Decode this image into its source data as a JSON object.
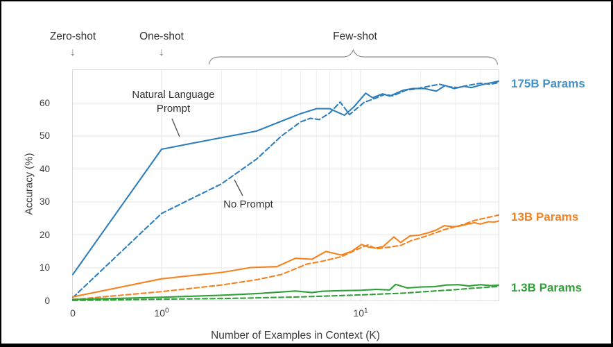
{
  "figure": {
    "header": {
      "zero_shot": "Zero-shot",
      "one_shot": "One-shot",
      "few_shot": "Few-shot",
      "arrow_glyph": "↓"
    },
    "annotations": {
      "nl_prompt_line1": "Natural Language",
      "nl_prompt_line2": "Prompt",
      "no_prompt": "No Prompt"
    },
    "series_labels": [
      {
        "text": "175B Params",
        "color": "#4292c8"
      },
      {
        "text": "13B Params",
        "color": "#f5821e"
      },
      {
        "text": "1.3B Params",
        "color": "#2fa037"
      }
    ],
    "colors": {
      "background": "#ffffff",
      "frame": "#000000",
      "grid_major": "#e5e5e5",
      "grid_minor": "#efefef",
      "plot_border": "#d8d8d8",
      "text": "#3b3b3b",
      "annotation_gray": "#8f8f8f"
    }
  },
  "chart_data": {
    "type": "line",
    "title": "",
    "xlabel": "Number of Examples in Context  (K)",
    "ylabel": "Accuracy (%)",
    "x_scale": "symlog",
    "xlim": [
      0,
      50
    ],
    "ylim": [
      0,
      70
    ],
    "y_ticks": [
      0,
      10,
      20,
      30,
      40,
      50,
      60
    ],
    "x_ticks": [
      {
        "value": 0,
        "base": "0",
        "exp": ""
      },
      {
        "value": 1,
        "base": "10",
        "exp": "0"
      },
      {
        "value": 10,
        "base": "10",
        "exp": "1"
      }
    ],
    "x_major_gridlines": [
      1,
      10
    ],
    "x_minor_gridlines": [
      2,
      3,
      4,
      5,
      6,
      7,
      8,
      9,
      20,
      30,
      40,
      50
    ],
    "grid": true,
    "legend_position": "right-edge-labels",
    "series": [
      {
        "name": "175B Params — Natural Language Prompt",
        "color": "#2e7ebc",
        "style": "solid",
        "points": [
          [
            0,
            8
          ],
          [
            1,
            46
          ],
          [
            2,
            49.5
          ],
          [
            3,
            51.5
          ],
          [
            4,
            54.5
          ],
          [
            5,
            56.8
          ],
          [
            6,
            58.3
          ],
          [
            7,
            58.3
          ],
          [
            7.6,
            57.3
          ],
          [
            8.3,
            56.3
          ],
          [
            9.3,
            59
          ],
          [
            10.6,
            63
          ],
          [
            11.5,
            61.6
          ],
          [
            12.9,
            62.8
          ],
          [
            14,
            62.1
          ],
          [
            16.4,
            63.9
          ],
          [
            18.2,
            64.4
          ],
          [
            21,
            64.4
          ],
          [
            24,
            63.6
          ],
          [
            26.6,
            65.3
          ],
          [
            29.5,
            64.4
          ],
          [
            33,
            65.1
          ],
          [
            36,
            64.7
          ],
          [
            41,
            65.6
          ],
          [
            45.5,
            66.2
          ],
          [
            50,
            66.7
          ]
        ]
      },
      {
        "name": "175B Params — No Prompt",
        "color": "#2e7ebc",
        "style": "dashed",
        "points": [
          [
            0,
            1
          ],
          [
            1,
            26.5
          ],
          [
            2,
            35.5
          ],
          [
            3,
            43
          ],
          [
            4,
            50
          ],
          [
            5,
            54.3
          ],
          [
            5.6,
            55.4
          ],
          [
            6.2,
            55
          ],
          [
            7,
            57
          ],
          [
            7.9,
            60.3
          ],
          [
            8.8,
            56.5
          ],
          [
            10.4,
            60.2
          ],
          [
            11.9,
            61.5
          ],
          [
            13.2,
            62.6
          ],
          [
            14.5,
            62.2
          ],
          [
            16.9,
            63.9
          ],
          [
            19,
            64.3
          ],
          [
            22,
            65.1
          ],
          [
            25,
            65.7
          ],
          [
            28,
            64.9
          ],
          [
            31,
            64.7
          ],
          [
            35,
            65.4
          ],
          [
            40,
            66
          ],
          [
            45,
            65.7
          ],
          [
            50,
            66.3
          ]
        ]
      },
      {
        "name": "13B Params — Natural Language Prompt",
        "color": "#f5821e",
        "style": "solid",
        "points": [
          [
            0,
            1.2
          ],
          [
            1,
            6.7
          ],
          [
            2,
            8.6
          ],
          [
            2.8,
            10.1
          ],
          [
            3.8,
            10.4
          ],
          [
            4.7,
            12.9
          ],
          [
            5.7,
            12.6
          ],
          [
            6.7,
            15
          ],
          [
            8,
            13.9
          ],
          [
            9,
            15
          ],
          [
            10.1,
            17.1
          ],
          [
            11,
            16.3
          ],
          [
            11.9,
            16
          ],
          [
            13,
            16.5
          ],
          [
            14.7,
            19.4
          ],
          [
            15.9,
            17.7
          ],
          [
            17.7,
            19.7
          ],
          [
            19.5,
            19.9
          ],
          [
            21.8,
            20.6
          ],
          [
            24,
            21.5
          ],
          [
            26.3,
            22.8
          ],
          [
            29,
            22.5
          ],
          [
            31,
            22.6
          ],
          [
            34,
            23.2
          ],
          [
            37.3,
            23.7
          ],
          [
            40,
            23.3
          ],
          [
            44,
            24
          ],
          [
            47,
            23.9
          ],
          [
            50,
            24.3
          ]
        ]
      },
      {
        "name": "13B Params — No Prompt",
        "color": "#f5821e",
        "style": "dashed",
        "points": [
          [
            0,
            0.4
          ],
          [
            1,
            2.8
          ],
          [
            2,
            4.8
          ],
          [
            3,
            6.4
          ],
          [
            4,
            8
          ],
          [
            5.4,
            11.2
          ],
          [
            6.4,
            12
          ],
          [
            8,
            13.4
          ],
          [
            9.5,
            15.5
          ],
          [
            10.9,
            17
          ],
          [
            12,
            15.8
          ],
          [
            13.5,
            16.2
          ],
          [
            15.9,
            16.8
          ],
          [
            18,
            18.3
          ],
          [
            21,
            19.5
          ],
          [
            24,
            20.7
          ],
          [
            26.3,
            21.6
          ],
          [
            30,
            22.5
          ],
          [
            33,
            23.2
          ],
          [
            37.3,
            24.4
          ],
          [
            43,
            25.2
          ],
          [
            50,
            26.1
          ]
        ]
      },
      {
        "name": "1.3B Params — Natural Language Prompt",
        "color": "#2fa037",
        "style": "solid",
        "points": [
          [
            0,
            0.4
          ],
          [
            1,
            1.1
          ],
          [
            2,
            1.7
          ],
          [
            3,
            2.2
          ],
          [
            4,
            2.7
          ],
          [
            4.7,
            3
          ],
          [
            5.7,
            2.5
          ],
          [
            6.4,
            2.9
          ],
          [
            8,
            3.1
          ],
          [
            10,
            3.2
          ],
          [
            12,
            3.5
          ],
          [
            14,
            3.3
          ],
          [
            15,
            5
          ],
          [
            17.2,
            3.9
          ],
          [
            20,
            4.2
          ],
          [
            23.5,
            4.3
          ],
          [
            27,
            4.8
          ],
          [
            31,
            4.9
          ],
          [
            35,
            4.5
          ],
          [
            40,
            4.9
          ],
          [
            45,
            4.6
          ],
          [
            50,
            4.8
          ]
        ]
      },
      {
        "name": "1.3B Params — No Prompt",
        "color": "#2fa037",
        "style": "dashed",
        "points": [
          [
            0,
            0.15
          ],
          [
            1,
            0.5
          ],
          [
            2,
            0.7
          ],
          [
            3,
            0.9
          ],
          [
            5,
            1.2
          ],
          [
            7,
            1.5
          ],
          [
            9,
            1.7
          ],
          [
            11,
            1.9
          ],
          [
            13,
            2.1
          ],
          [
            16,
            2.3
          ],
          [
            20,
            2.7
          ],
          [
            25,
            3.1
          ],
          [
            30,
            3.4
          ],
          [
            36,
            3.8
          ],
          [
            43,
            4.1
          ],
          [
            50,
            4.4
          ]
        ]
      }
    ]
  }
}
